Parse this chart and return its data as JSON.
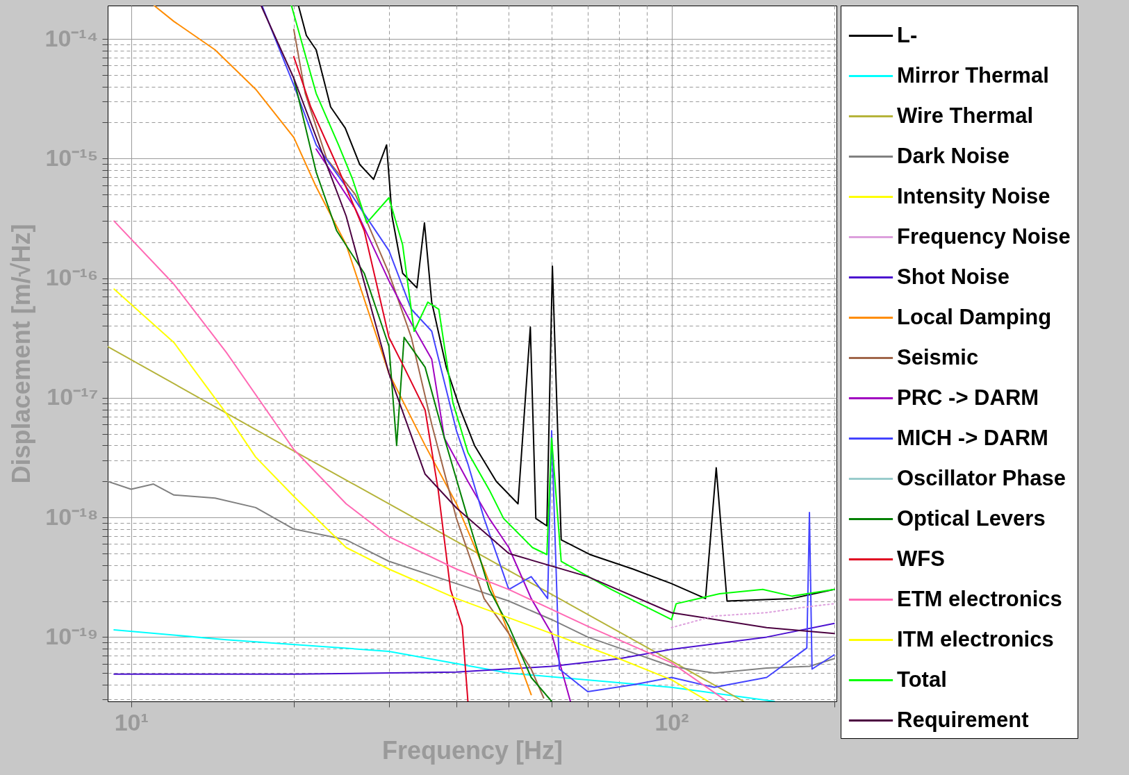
{
  "chart_data": {
    "type": "line",
    "xlabel": "Frequency [Hz]",
    "ylabel": "Displacement [m/√Hz]",
    "log": "xy",
    "grid": true,
    "legend": "right",
    "xlim": [
      9.05,
      202
    ],
    "ylim": [
      2.9e-20,
      1.9e-14
    ],
    "xticks": [
      {
        "value": 10,
        "label": "10¹"
      },
      {
        "value": 20,
        "label": null
      },
      {
        "value": 30,
        "label": null
      },
      {
        "value": 40,
        "label": null
      },
      {
        "value": 50,
        "label": null
      },
      {
        "value": 60,
        "label": null
      },
      {
        "value": 70,
        "label": null
      },
      {
        "value": 80,
        "label": null
      },
      {
        "value": 90,
        "label": null
      },
      {
        "value": 100,
        "label": "10²"
      },
      {
        "value": 200,
        "label": null
      }
    ],
    "yticks": [
      {
        "value": 3e-20,
        "label": null
      },
      {
        "value": 4e-20,
        "label": null
      },
      {
        "value": 5e-20,
        "label": null
      },
      {
        "value": 6e-20,
        "label": null
      },
      {
        "value": 7e-20,
        "label": null
      },
      {
        "value": 8e-20,
        "label": null
      },
      {
        "value": 9e-20,
        "label": null
      },
      {
        "value": 1e-19,
        "label": "10⁻¹⁹"
      },
      {
        "value": 2e-19,
        "label": null
      },
      {
        "value": 3e-19,
        "label": null
      },
      {
        "value": 4e-19,
        "label": null
      },
      {
        "value": 5e-19,
        "label": null
      },
      {
        "value": 6e-19,
        "label": null
      },
      {
        "value": 7e-19,
        "label": null
      },
      {
        "value": 8e-19,
        "label": null
      },
      {
        "value": 9e-19,
        "label": null
      },
      {
        "value": 1e-18,
        "label": "10⁻¹⁸"
      },
      {
        "value": 2e-18,
        "label": null
      },
      {
        "value": 3e-18,
        "label": null
      },
      {
        "value": 4e-18,
        "label": null
      },
      {
        "value": 5e-18,
        "label": null
      },
      {
        "value": 6e-18,
        "label": null
      },
      {
        "value": 7e-18,
        "label": null
      },
      {
        "value": 8e-18,
        "label": null
      },
      {
        "value": 9e-18,
        "label": null
      },
      {
        "value": 1e-17,
        "label": "10⁻¹⁷"
      },
      {
        "value": 2e-17,
        "label": null
      },
      {
        "value": 3e-17,
        "label": null
      },
      {
        "value": 4e-17,
        "label": null
      },
      {
        "value": 5e-17,
        "label": null
      },
      {
        "value": 6e-17,
        "label": null
      },
      {
        "value": 7e-17,
        "label": null
      },
      {
        "value": 8e-17,
        "label": null
      },
      {
        "value": 9e-17,
        "label": null
      },
      {
        "value": 1e-16,
        "label": "10⁻¹⁶"
      },
      {
        "value": 2e-16,
        "label": null
      },
      {
        "value": 3e-16,
        "label": null
      },
      {
        "value": 4e-16,
        "label": null
      },
      {
        "value": 5e-16,
        "label": null
      },
      {
        "value": 6e-16,
        "label": null
      },
      {
        "value": 7e-16,
        "label": null
      },
      {
        "value": 8e-16,
        "label": null
      },
      {
        "value": 9e-16,
        "label": null
      },
      {
        "value": 1e-15,
        "label": "10⁻¹⁵"
      },
      {
        "value": 2e-15,
        "label": null
      },
      {
        "value": 3e-15,
        "label": null
      },
      {
        "value": 4e-15,
        "label": null
      },
      {
        "value": 5e-15,
        "label": null
      },
      {
        "value": 6e-15,
        "label": null
      },
      {
        "value": 7e-15,
        "label": null
      },
      {
        "value": 8e-15,
        "label": null
      },
      {
        "value": 9e-15,
        "label": null
      },
      {
        "value": 1e-14,
        "label": "10⁻¹⁴"
      }
    ],
    "series": [
      {
        "name": "L-",
        "color": "#000000",
        "x": [
          20.4,
          21.1,
          22.0,
          23.4,
          24.9,
          26.5,
          28.1,
          29.7,
          30.4,
          31.8,
          33.8,
          34.9,
          36.0,
          38.3,
          40.7,
          43.2,
          47.4,
          52.0,
          54.8,
          56.1,
          58.8,
          60.2,
          62.5,
          70.6,
          84.9,
          100,
          115.6,
          121,
          126.7,
          167,
          200
        ],
        "values": [
          1.9e-14,
          1.07e-14,
          8.1e-15,
          2.7e-15,
          1.8e-15,
          8.9e-16,
          6.7e-16,
          1.3e-15,
          3.3e-16,
          1.1e-16,
          8.3e-17,
          2.9e-16,
          6.3e-17,
          1.8e-17,
          7.9e-18,
          4e-18,
          2e-18,
          1.3e-18,
          3.9e-17,
          9.8e-19,
          8.5e-19,
          1.26e-16,
          6.5e-19,
          4.9e-19,
          3.7e-19,
          2.8e-19,
          2.1e-19,
          2.6e-18,
          2e-19,
          2.1e-19,
          2.5e-19
        ]
      },
      {
        "name": "Mirror Thermal",
        "color": "#00ffff",
        "x": [
          9.3,
          15,
          30,
          50,
          100,
          155
        ],
        "values": [
          1.15e-19,
          9.5e-20,
          7.6e-20,
          5e-20,
          3.8e-20,
          2.9e-20
        ]
      },
      {
        "name": "Wire Thermal",
        "color": "#b5b33a",
        "x": [
          9.05,
          20,
          50,
          100,
          136
        ],
        "values": [
          2.68e-17,
          3.6e-18,
          3.6e-19,
          6.3e-20,
          2.9e-20
        ]
      },
      {
        "name": "Dark Noise",
        "color": "#808080",
        "x": [
          9.05,
          10,
          11,
          12,
          14.3,
          17,
          20,
          25,
          30,
          40,
          50,
          60,
          70,
          80,
          100,
          120,
          150,
          180,
          200
        ],
        "values": [
          2e-18,
          1.72e-18,
          1.9e-18,
          1.54e-18,
          1.45e-18,
          1.21e-18,
          8e-19,
          6.5e-19,
          4.3e-19,
          2.8e-19,
          2e-19,
          1.4e-19,
          1e-19,
          8.1e-20,
          5.7e-20,
          5e-20,
          5.5e-20,
          5.7e-20,
          6.6e-20
        ]
      },
      {
        "name": "Intensity Noise",
        "color": "#ffff00"
      },
      {
        "name": "Frequency Noise",
        "color": "#dda0dd",
        "line_style": "dotted",
        "x": [
          100,
          120,
          150,
          180,
          200
        ],
        "values": [
          1.2e-19,
          1.5e-19,
          1.6e-19,
          1.8e-19,
          1.9e-19
        ]
      },
      {
        "name": "Shot Noise",
        "color": "#4b10d0",
        "x": [
          9.3,
          20,
          40,
          60,
          80,
          100,
          150,
          200
        ],
        "values": [
          4.9e-20,
          4.9e-20,
          5.1e-20,
          5.7e-20,
          6.6e-20,
          7.9e-20,
          1e-19,
          1.3e-19
        ]
      },
      {
        "name": "Local Damping",
        "color": "#ff8c00",
        "x": [
          11.03,
          12,
          14.3,
          17,
          20,
          22,
          25,
          30,
          35,
          40,
          45,
          50,
          55
        ],
        "values": [
          1.9e-14,
          1.4e-14,
          8.1e-15,
          3.8e-15,
          1.5e-15,
          5.8e-16,
          1.9e-16,
          1.6e-17,
          4e-18,
          1.3e-18,
          3.7e-19,
          1.07e-19,
          3.3e-20
        ]
      },
      {
        "name": "Seismic",
        "color": "#a0664a",
        "x": [
          20,
          21,
          23,
          26,
          30,
          33,
          36,
          40,
          45,
          50,
          55,
          58
        ],
        "values": [
          1.2e-14,
          3.5e-15,
          1e-15,
          5e-16,
          1.1e-16,
          3.2e-17,
          6e-18,
          9.8e-19,
          2.1e-19,
          1.07e-19,
          5.4e-20,
          3.1e-20
        ]
      },
      {
        "name": "PRC -> DARM",
        "color": "#a000c0",
        "x": [
          22,
          26,
          30,
          33,
          36,
          38,
          42,
          46,
          50,
          55,
          60,
          65
        ],
        "values": [
          1.2e-15,
          3.8e-16,
          9.5e-17,
          4.2e-17,
          2.1e-17,
          4.6e-18,
          2e-18,
          9.8e-19,
          5.6e-19,
          2.1e-19,
          1.07e-19,
          2.9e-20
        ]
      },
      {
        "name": "MICH  -> DARM",
        "color": "#4444ff",
        "x": [
          17.5,
          20,
          22,
          25,
          30,
          33,
          36,
          40,
          42,
          45,
          50,
          55,
          59,
          60,
          62,
          70,
          85,
          100,
          120,
          150,
          178,
          180,
          182,
          200
        ],
        "values": [
          1.86e-14,
          4.1e-15,
          1.3e-15,
          5.8e-16,
          1.7e-16,
          5.5e-17,
          3.6e-17,
          5.3e-18,
          2.8e-18,
          9.8e-19,
          2.5e-19,
          3.2e-19,
          2.1e-19,
          5.3e-18,
          5.4e-20,
          3.5e-20,
          4e-20,
          4.6e-20,
          3.8e-20,
          4.6e-20,
          8.1e-20,
          1.1e-18,
          5.4e-20,
          7.1e-20
        ]
      },
      {
        "name": "Oscillator Phase",
        "color": "#99cccc"
      },
      {
        "name": "Optical Levers",
        "color": "#008000",
        "x": [
          20,
          22,
          24,
          27,
          30,
          31,
          32,
          35,
          38,
          42,
          46,
          50,
          55,
          60
        ],
        "values": [
          4.7e-15,
          7.7e-16,
          2.5e-16,
          1.1e-16,
          2.7e-17,
          4e-18,
          3.2e-17,
          1.8e-17,
          4.6e-18,
          9.8e-19,
          2.5e-19,
          1.23e-19,
          4.6e-20,
          2.9e-20
        ]
      },
      {
        "name": "WFS",
        "color": "#e00020",
        "x": [
          20,
          21.5,
          24,
          27,
          30,
          32,
          35,
          37,
          39,
          41,
          42
        ],
        "values": [
          7.1e-15,
          2.7e-15,
          8.9e-16,
          2.5e-16,
          3.2e-17,
          1.8e-17,
          7.9e-18,
          1.7e-18,
          2.5e-19,
          1.23e-19,
          2.9e-20
        ]
      },
      {
        "name": "ETM electronics",
        "color": "#ff69b4",
        "x": [
          9.3,
          12,
          15,
          20,
          25,
          30,
          40,
          50,
          70,
          100,
          126.7
        ],
        "values": [
          3e-16,
          8.9e-17,
          2.4e-17,
          3.7e-18,
          1.3e-18,
          6.9e-19,
          3.7e-19,
          2.5e-19,
          1.23e-19,
          6.1e-20,
          2.9e-20
        ]
      },
      {
        "name": "ITM electronics",
        "color": "#ffff00",
        "x": [
          9.3,
          12,
          15,
          17,
          20,
          25,
          30,
          40,
          60,
          80,
          100,
          117
        ],
        "values": [
          8.1e-17,
          2.9e-17,
          7.4e-18,
          3.2e-18,
          1.5e-18,
          5.6e-19,
          3.7e-19,
          2.1e-19,
          1.07e-19,
          6.6e-20,
          4.4e-20,
          2.9e-20
        ]
      },
      {
        "name": "Total",
        "color": "#00ff00",
        "x": [
          19.8,
          20.7,
          22.0,
          24.2,
          25.7,
          27.3,
          30,
          31.8,
          33.4,
          35.4,
          37.1,
          39.4,
          42.0,
          46.0,
          48.9,
          55.3,
          58.8,
          60,
          62.5,
          77.4,
          100,
          102,
          122.7,
          147.5,
          167,
          200
        ],
        "values": [
          1.9e-14,
          9.3e-15,
          3.5e-15,
          1.3e-15,
          6.7e-16,
          2.9e-16,
          4.7e-16,
          1.9e-16,
          3.6e-17,
          6.3e-17,
          5.5e-17,
          9.1e-18,
          3.5e-18,
          1.7e-18,
          9.8e-19,
          5.6e-19,
          4.9e-19,
          4.6e-18,
          4.3e-19,
          2.5e-19,
          1.4e-19,
          1.9e-19,
          2.3e-19,
          2.5e-19,
          2.2e-19,
          2.5e-19
        ]
      },
      {
        "name": "Requirement",
        "color": "#4b0040",
        "x": [
          17.4,
          20,
          25,
          30,
          35,
          40,
          50,
          70,
          100,
          150,
          200
        ],
        "values": [
          1.9e-14,
          4.7e-15,
          3.3e-16,
          1.6e-17,
          2.3e-18,
          1.2e-18,
          5e-19,
          3.2e-19,
          1.6e-19,
          1.2e-19,
          1.07e-19
        ]
      }
    ]
  }
}
